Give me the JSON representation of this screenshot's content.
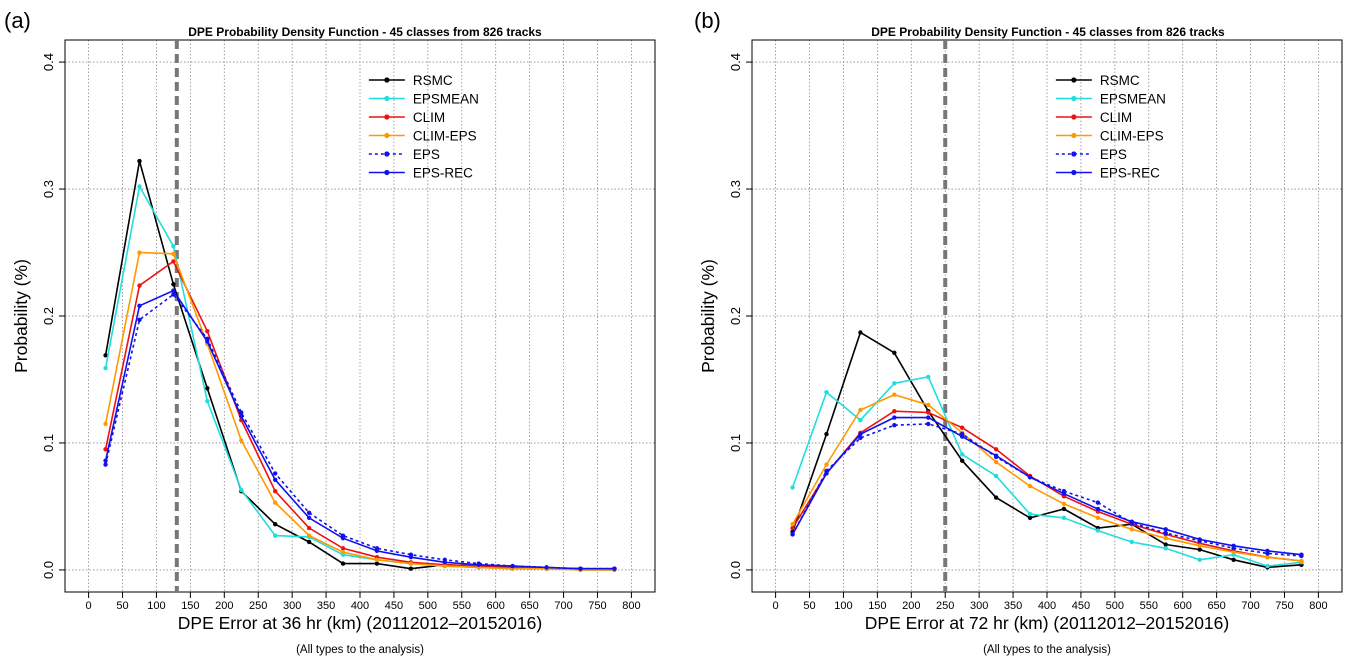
{
  "chart_data": [
    {
      "type": "line",
      "panel_label": "(a)",
      "title": "DPE Probability Density Function - 45 classes from 826 tracks",
      "xlabel": "DPE Error at 36 hr (km) (20112012–20152016)",
      "subcaption": "(All types to the analysis)",
      "ylabel": "Probability (%)",
      "xlim": [
        0,
        800
      ],
      "ylim": [
        0,
        0.4
      ],
      "xticks": [
        "0",
        "50",
        "100",
        "150",
        "200",
        "250",
        "300",
        "350",
        "400",
        "450",
        "500",
        "550",
        "600",
        "650",
        "700",
        "750",
        "800"
      ],
      "yticks": [
        "0.0",
        "0.1",
        "0.2",
        "0.3",
        "0.4"
      ],
      "grid": true,
      "legend_position": "top-right",
      "vline_x": 130,
      "x": [
        25,
        75,
        125,
        175,
        225,
        275,
        325,
        375,
        425,
        475,
        525,
        575,
        625,
        675,
        725,
        775
      ],
      "series": [
        {
          "name": "RSMC",
          "color": "#000000",
          "dash": false,
          "values": [
            0.169,
            0.322,
            0.225,
            0.143,
            0.062,
            0.036,
            0.022,
            0.005,
            0.005,
            0.001,
            0.004,
            0.003,
            0.002,
            0.001,
            0.001,
            0.0
          ]
        },
        {
          "name": "EPSMEAN",
          "color": "#22dddd",
          "dash": false,
          "values": [
            0.159,
            0.302,
            0.255,
            0.133,
            0.063,
            0.027,
            0.026,
            0.012,
            0.008,
            0.005,
            0.003,
            0.002,
            0.001,
            0.001,
            0.0,
            0.0
          ]
        },
        {
          "name": "CLIM",
          "color": "#ee1111",
          "dash": false,
          "values": [
            0.095,
            0.224,
            0.243,
            0.188,
            0.118,
            0.062,
            0.033,
            0.017,
            0.01,
            0.006,
            0.004,
            0.003,
            0.002,
            0.001,
            0.001,
            0.001
          ]
        },
        {
          "name": "CLIM-EPS",
          "color": "#ff9900",
          "dash": false,
          "values": [
            0.115,
            0.25,
            0.249,
            0.178,
            0.102,
            0.053,
            0.027,
            0.014,
            0.008,
            0.005,
            0.003,
            0.002,
            0.001,
            0.001,
            0.0,
            0.0
          ]
        },
        {
          "name": "EPS",
          "color": "#1111ee",
          "dash": true,
          "values": [
            0.083,
            0.197,
            0.217,
            0.182,
            0.124,
            0.076,
            0.045,
            0.027,
            0.017,
            0.012,
            0.008,
            0.005,
            0.003,
            0.002,
            0.001,
            0.001
          ]
        },
        {
          "name": "EPS-REC",
          "color": "#1111ee",
          "dash": false,
          "values": [
            0.086,
            0.208,
            0.22,
            0.18,
            0.121,
            0.071,
            0.041,
            0.025,
            0.015,
            0.01,
            0.006,
            0.004,
            0.003,
            0.002,
            0.001,
            0.001
          ]
        }
      ]
    },
    {
      "type": "line",
      "panel_label": "(b)",
      "title": "DPE Probability Density Function - 45 classes from 826 tracks",
      "xlabel": "DPE Error at 72 hr (km) (20112012–20152016)",
      "subcaption": "(All types to the analysis)",
      "ylabel": "Probability (%)",
      "xlim": [
        0,
        800
      ],
      "ylim": [
        0,
        0.4
      ],
      "xticks": [
        "0",
        "50",
        "100",
        "150",
        "200",
        "250",
        "300",
        "350",
        "400",
        "450",
        "500",
        "550",
        "600",
        "650",
        "700",
        "750",
        "800"
      ],
      "yticks": [
        "0.0",
        "0.1",
        "0.2",
        "0.3",
        "0.4"
      ],
      "grid": true,
      "legend_position": "top-right",
      "vline_x": 250,
      "x": [
        25,
        75,
        125,
        175,
        225,
        275,
        325,
        375,
        425,
        475,
        525,
        575,
        625,
        675,
        725,
        775
      ],
      "series": [
        {
          "name": "RSMC",
          "color": "#000000",
          "dash": false,
          "values": [
            0.03,
            0.107,
            0.187,
            0.171,
            0.125,
            0.086,
            0.057,
            0.041,
            0.048,
            0.033,
            0.036,
            0.02,
            0.016,
            0.008,
            0.002,
            0.004
          ]
        },
        {
          "name": "EPSMEAN",
          "color": "#22dddd",
          "dash": false,
          "values": [
            0.065,
            0.14,
            0.118,
            0.147,
            0.152,
            0.091,
            0.074,
            0.044,
            0.041,
            0.031,
            0.022,
            0.017,
            0.008,
            0.012,
            0.003,
            0.006
          ]
        },
        {
          "name": "CLIM",
          "color": "#ee1111",
          "dash": false,
          "values": [
            0.033,
            0.076,
            0.108,
            0.125,
            0.124,
            0.112,
            0.095,
            0.074,
            0.058,
            0.046,
            0.036,
            0.028,
            0.021,
            0.015,
            0.01,
            0.007
          ]
        },
        {
          "name": "CLIM-EPS",
          "color": "#ff9900",
          "dash": false,
          "values": [
            0.036,
            0.083,
            0.126,
            0.138,
            0.13,
            0.108,
            0.085,
            0.066,
            0.052,
            0.041,
            0.032,
            0.025,
            0.019,
            0.014,
            0.01,
            0.007
          ]
        },
        {
          "name": "EPS",
          "color": "#1111ee",
          "dash": true,
          "values": [
            0.028,
            0.078,
            0.104,
            0.114,
            0.115,
            0.107,
            0.089,
            0.073,
            0.062,
            0.053,
            0.037,
            0.029,
            0.023,
            0.017,
            0.013,
            0.011
          ]
        },
        {
          "name": "EPS-REC",
          "color": "#1111ee",
          "dash": false,
          "values": [
            0.028,
            0.076,
            0.107,
            0.12,
            0.12,
            0.105,
            0.09,
            0.073,
            0.06,
            0.048,
            0.038,
            0.032,
            0.024,
            0.019,
            0.015,
            0.012
          ]
        }
      ]
    }
  ]
}
